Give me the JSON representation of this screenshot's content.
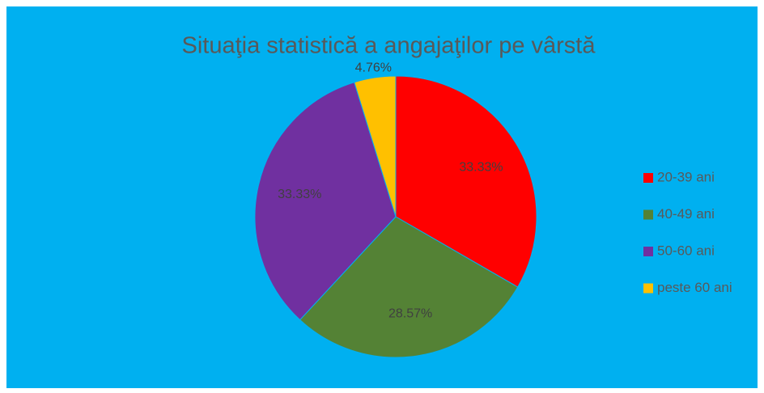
{
  "chart_data": {
    "type": "pie",
    "title": "Situaţia statistică a angajaţilor pe vârstă",
    "categories": [
      "20-39 ani",
      "40-49 ani",
      "50-60 ani",
      "peste 60 ani"
    ],
    "values": [
      33.33,
      28.57,
      33.33,
      4.76
    ],
    "value_labels": [
      "33.33%",
      "28.57%",
      "33.33%",
      "4.76%"
    ],
    "colors": [
      "#ff0000",
      "#548235",
      "#7030a0",
      "#ffc000"
    ],
    "legend": "right"
  }
}
